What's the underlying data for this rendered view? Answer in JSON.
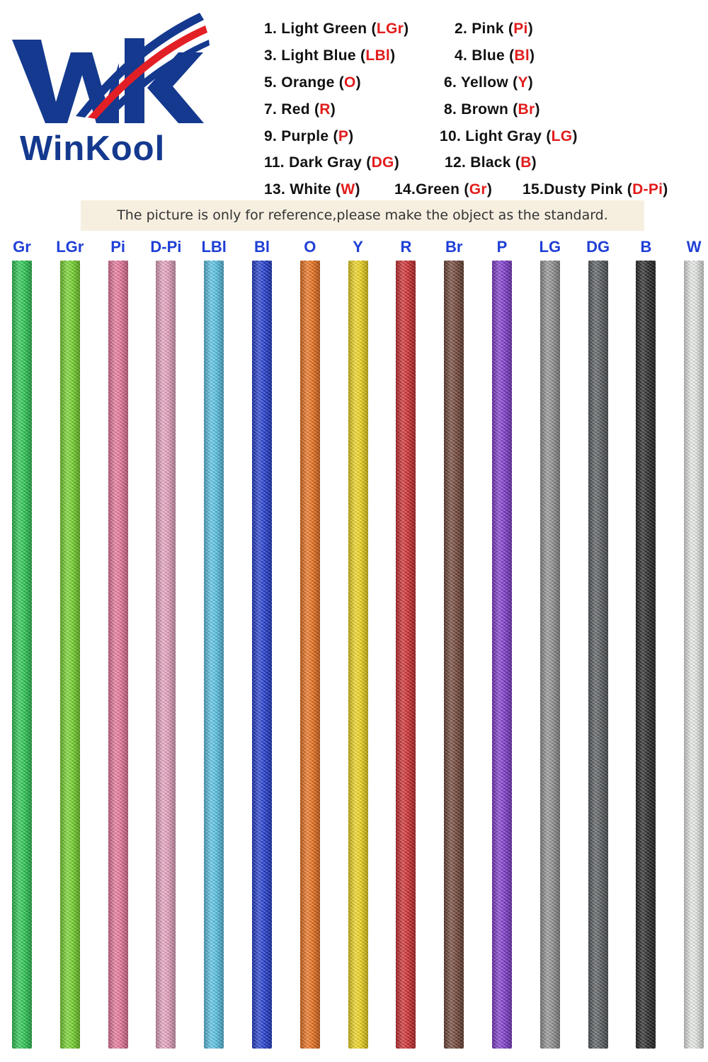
{
  "brand": {
    "name": "WinKool",
    "colors": {
      "navy": "#14398f",
      "red": "#e31f26"
    }
  },
  "legend": [
    {
      "text": "1. Light Green (",
      "abbr": "LGr",
      "close": ")"
    },
    {
      "text": "2. Pink (",
      "abbr": "Pi",
      "close": ")"
    },
    {
      "text": "3. Light Blue (",
      "abbr": "LBl",
      "close": ")"
    },
    {
      "text": "4. Blue (",
      "abbr": "Bl",
      "close": ")"
    },
    {
      "text": "5. Orange (",
      "abbr": "O",
      "close": ")"
    },
    {
      "text": "6. Yellow (",
      "abbr": "Y",
      "close": ")"
    },
    {
      "text": "7. Red (",
      "abbr": "R",
      "close": ")"
    },
    {
      "text": "8. Brown (",
      "abbr": "Br",
      "close": ")"
    },
    {
      "text": "9. Purple (",
      "abbr": "P",
      "close": ")"
    },
    {
      "text": "10. Light Gray (",
      "abbr": "LG",
      "close": ")"
    },
    {
      "text": "11. Dark Gray (",
      "abbr": "DG",
      "close": ")"
    },
    {
      "text": "12. Black (",
      "abbr": "B",
      "close": ")"
    },
    {
      "text": "13. White (",
      "abbr": "W",
      "close": ")"
    },
    {
      "text": "14.Green (",
      "abbr": "Gr",
      "close": ")"
    },
    {
      "text": "15.Dusty Pink (",
      "abbr": "D-Pi",
      "close": ")"
    }
  ],
  "note": "The picture is only for reference,please make the object as the standard.",
  "cables": [
    {
      "label": "Gr",
      "color": "#1fc94a"
    },
    {
      "label": "LGr",
      "color": "#6fd61f"
    },
    {
      "label": "Pi",
      "color": "#ec6f96"
    },
    {
      "label": "D-Pi",
      "color": "#e99fc0"
    },
    {
      "label": "LBl",
      "color": "#4fc3e8"
    },
    {
      "label": "Bl",
      "color": "#1532d2"
    },
    {
      "label": "O",
      "color": "#f06a0f"
    },
    {
      "label": "Y",
      "color": "#f2d70e"
    },
    {
      "label": "R",
      "color": "#cf1f22"
    },
    {
      "label": "Br",
      "color": "#6a3a2c"
    },
    {
      "label": "P",
      "color": "#7a2fcf"
    },
    {
      "label": "LG",
      "color": "#8e8e8e"
    },
    {
      "label": "DG",
      "color": "#4f5356"
    },
    {
      "label": "B",
      "color": "#1a1a1a"
    },
    {
      "label": "W",
      "color": "#e8ece8"
    }
  ]
}
